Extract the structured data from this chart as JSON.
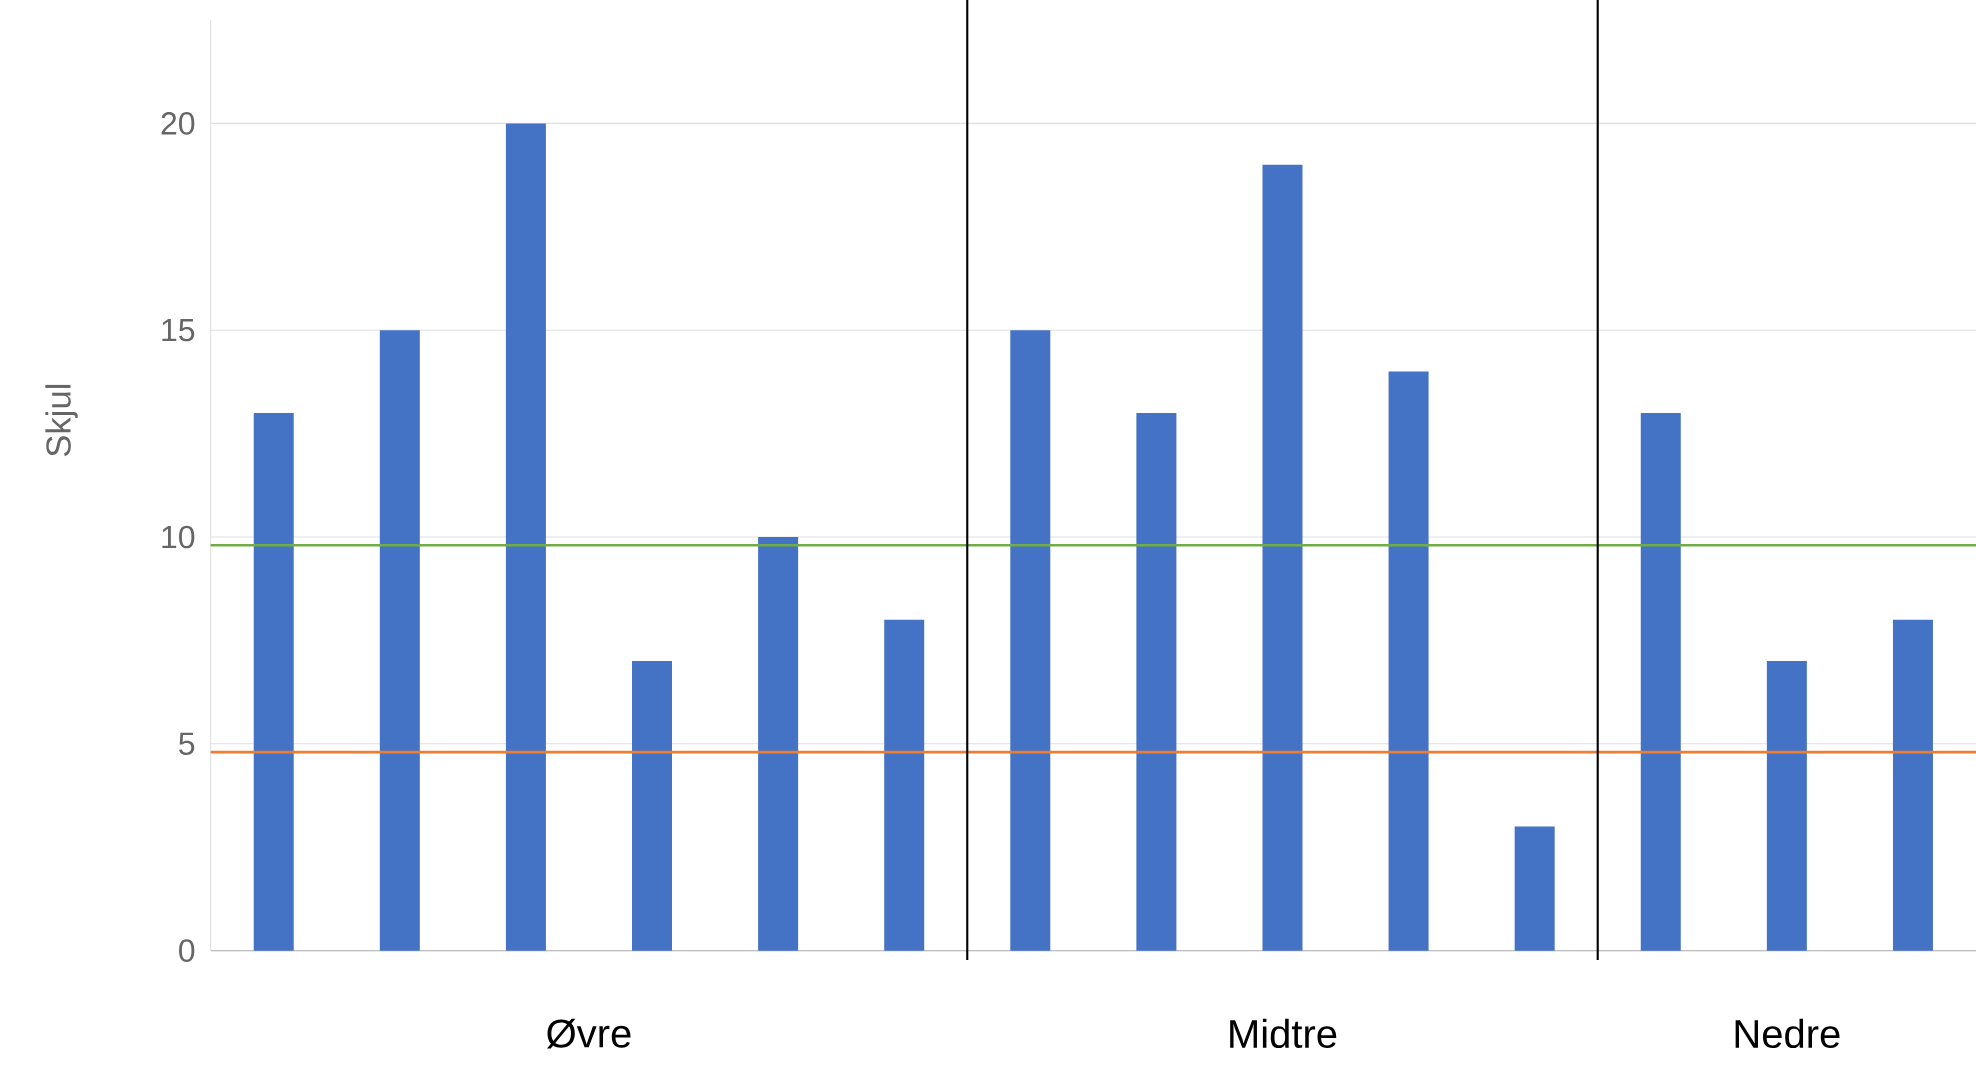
{
  "chart_data": {
    "type": "bar",
    "ylabel": "Skjul",
    "categories": [
      null,
      null,
      null,
      null,
      null,
      null,
      null,
      null,
      null,
      null,
      null,
      null,
      null,
      null
    ],
    "values": [
      13,
      15,
      20,
      7,
      10,
      8,
      15,
      13,
      19,
      14,
      3,
      13,
      7,
      8
    ],
    "color": "#4472c4",
    "ylim": [
      0,
      22.5
    ],
    "yticks": [
      0,
      5,
      10,
      15,
      20
    ],
    "grid": "y",
    "ref_lines": [
      {
        "axis": "y",
        "value": 9.8,
        "color": "#70ad47"
      },
      {
        "axis": "y",
        "value": 4.8,
        "color": "#ed7d31"
      }
    ],
    "annotations": [
      "Øvre",
      "Midtre",
      "Nedre"
    ]
  }
}
